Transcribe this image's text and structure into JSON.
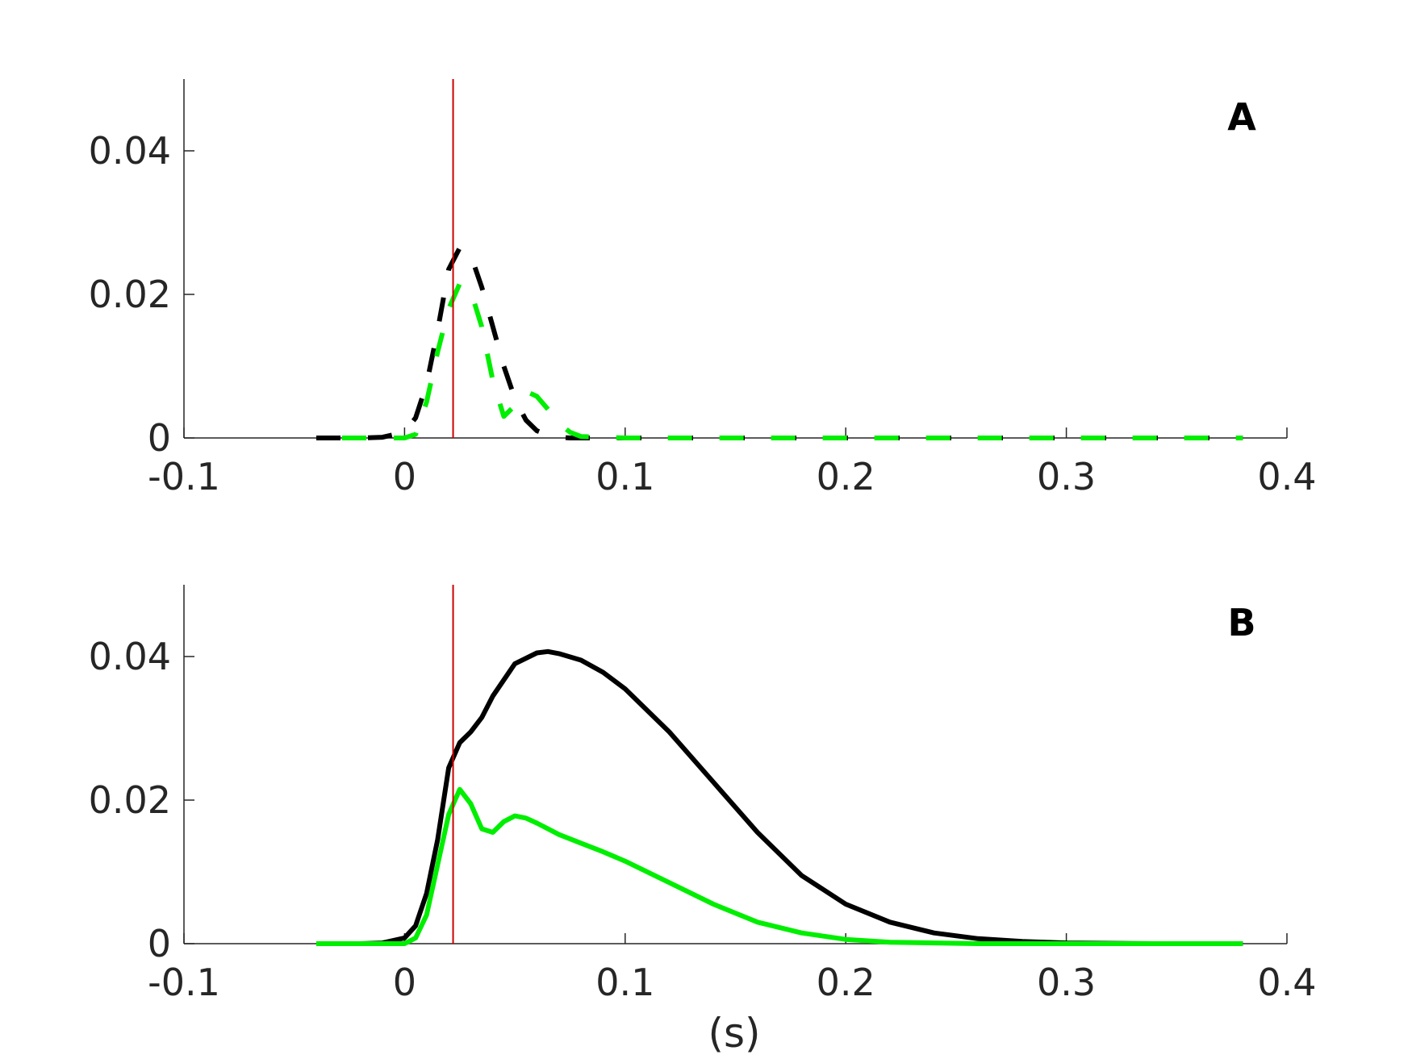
{
  "chart_data": [
    {
      "type": "line",
      "panel_label": "A",
      "xlim": [
        -0.1,
        0.4
      ],
      "ylim": [
        0,
        0.05
      ],
      "xticks": [
        "-0.1",
        "0",
        "0.1",
        "0.2",
        "0.3",
        "0.4"
      ],
      "yticks": [
        "0",
        "0.02",
        "0.04"
      ],
      "xlabel": "",
      "grid": false,
      "vline_x": 0.022,
      "colors": {
        "black": "#000000",
        "green": "#00ee00",
        "vline": "#cc0000"
      },
      "series": [
        {
          "color": "#000000",
          "style": "dashed",
          "x": [
            -0.04,
            -0.02,
            -0.01,
            0.0,
            0.005,
            0.01,
            0.015,
            0.02,
            0.025,
            0.03,
            0.035,
            0.04,
            0.045,
            0.05,
            0.055,
            0.06,
            0.065,
            0.07,
            0.075,
            0.08,
            0.1,
            0.2,
            0.3,
            0.38
          ],
          "y": [
            0,
            0,
            0.0001,
            0.0008,
            0.0028,
            0.0075,
            0.015,
            0.0235,
            0.0265,
            0.0255,
            0.021,
            0.0155,
            0.01,
            0.0055,
            0.0025,
            0.001,
            0.0004,
            0.0001,
            0,
            0,
            0,
            0,
            0,
            0
          ]
        },
        {
          "color": "#00ee00",
          "style": "dashed",
          "x": [
            -0.04,
            0.0,
            0.005,
            0.01,
            0.015,
            0.02,
            0.025,
            0.03,
            0.035,
            0.04,
            0.045,
            0.05,
            0.055,
            0.06,
            0.065,
            0.07,
            0.075,
            0.08,
            0.1,
            0.2,
            0.3,
            0.38
          ],
          "y": [
            0,
            0,
            0.0005,
            0.005,
            0.012,
            0.018,
            0.0215,
            0.0205,
            0.0155,
            0.008,
            0.003,
            0.0045,
            0.0065,
            0.0058,
            0.004,
            0.002,
            0.0008,
            0.0002,
            0,
            0,
            0,
            0
          ]
        }
      ]
    },
    {
      "type": "line",
      "panel_label": "B",
      "xlim": [
        -0.1,
        0.4
      ],
      "ylim": [
        0,
        0.05
      ],
      "xticks": [
        "-0.1",
        "0",
        "0.1",
        "0.2",
        "0.3",
        "0.4"
      ],
      "yticks": [
        "0",
        "0.02",
        "0.04"
      ],
      "xlabel": "(s)",
      "grid": false,
      "vline_x": 0.022,
      "colors": {
        "black": "#000000",
        "green": "#00ee00",
        "vline": "#cc0000"
      },
      "series": [
        {
          "color": "#000000",
          "style": "solid",
          "x": [
            -0.04,
            -0.02,
            -0.01,
            0.0,
            0.005,
            0.01,
            0.015,
            0.02,
            0.025,
            0.03,
            0.035,
            0.04,
            0.05,
            0.06,
            0.065,
            0.07,
            0.08,
            0.09,
            0.1,
            0.12,
            0.14,
            0.16,
            0.18,
            0.2,
            0.22,
            0.24,
            0.26,
            0.28,
            0.3,
            0.34,
            0.38
          ],
          "y": [
            0,
            0,
            0.0001,
            0.0008,
            0.0025,
            0.007,
            0.0145,
            0.0245,
            0.028,
            0.0295,
            0.0315,
            0.0345,
            0.039,
            0.0405,
            0.0407,
            0.0404,
            0.0395,
            0.0378,
            0.0355,
            0.0295,
            0.0225,
            0.0155,
            0.0095,
            0.0055,
            0.003,
            0.0015,
            0.0007,
            0.0003,
            0.0001,
            0,
            0
          ]
        },
        {
          "color": "#00ee00",
          "style": "solid",
          "x": [
            -0.04,
            0.0,
            0.005,
            0.01,
            0.015,
            0.02,
            0.025,
            0.03,
            0.035,
            0.04,
            0.045,
            0.05,
            0.055,
            0.06,
            0.07,
            0.08,
            0.09,
            0.1,
            0.12,
            0.14,
            0.16,
            0.18,
            0.2,
            0.22,
            0.24,
            0.26,
            0.28,
            0.3,
            0.34,
            0.38
          ],
          "y": [
            0,
            0,
            0.0008,
            0.004,
            0.011,
            0.018,
            0.0215,
            0.0195,
            0.016,
            0.0155,
            0.017,
            0.0178,
            0.0175,
            0.0168,
            0.0152,
            0.014,
            0.0128,
            0.0115,
            0.0085,
            0.0055,
            0.003,
            0.0015,
            0.0006,
            0.0002,
            0.0001,
            0,
            0,
            0,
            0,
            0
          ]
        }
      ]
    }
  ]
}
